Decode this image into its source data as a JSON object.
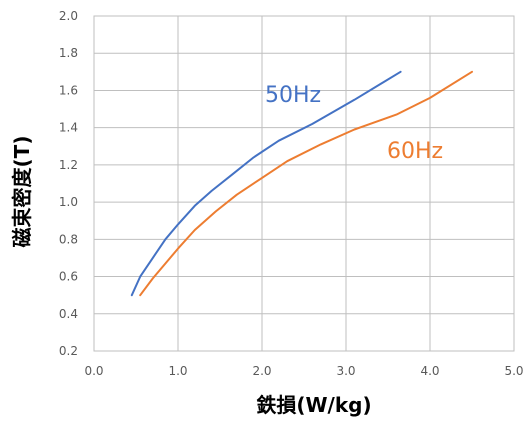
{
  "chart_data": {
    "type": "line",
    "title": "",
    "xlabel": "鉄損(W/kg)",
    "ylabel": "磁束密度(T)",
    "xlim": [
      0.0,
      5.0
    ],
    "ylim": [
      0.2,
      2.0
    ],
    "xticks": [
      "0.0",
      "1.0",
      "2.0",
      "3.0",
      "4.0",
      "5.0"
    ],
    "yticks": [
      "0.2",
      "0.4",
      "0.6",
      "0.8",
      "1.0",
      "1.2",
      "1.4",
      "1.6",
      "1.8",
      "2.0"
    ],
    "grid": true,
    "series": [
      {
        "name": "50Hz",
        "color": "#4472C4",
        "x": [
          0.45,
          0.55,
          0.7,
          0.85,
          1.0,
          1.2,
          1.4,
          1.65,
          1.9,
          2.2,
          2.6,
          3.1,
          3.65
        ],
        "y": [
          0.5,
          0.6,
          0.7,
          0.8,
          0.88,
          0.98,
          1.06,
          1.15,
          1.24,
          1.33,
          1.42,
          1.55,
          1.7
        ]
      },
      {
        "name": "60Hz",
        "color": "#ED7D31",
        "x": [
          0.55,
          0.7,
          0.85,
          1.0,
          1.2,
          1.45,
          1.7,
          2.0,
          2.3,
          2.7,
          3.1,
          3.6,
          4.0,
          4.5
        ],
        "y": [
          0.5,
          0.59,
          0.67,
          0.75,
          0.85,
          0.95,
          1.04,
          1.13,
          1.22,
          1.31,
          1.39,
          1.47,
          1.56,
          1.7
        ]
      }
    ],
    "annotations": [
      {
        "text": "50Hz",
        "series": 0
      },
      {
        "text": "60Hz",
        "series": 1
      }
    ]
  }
}
